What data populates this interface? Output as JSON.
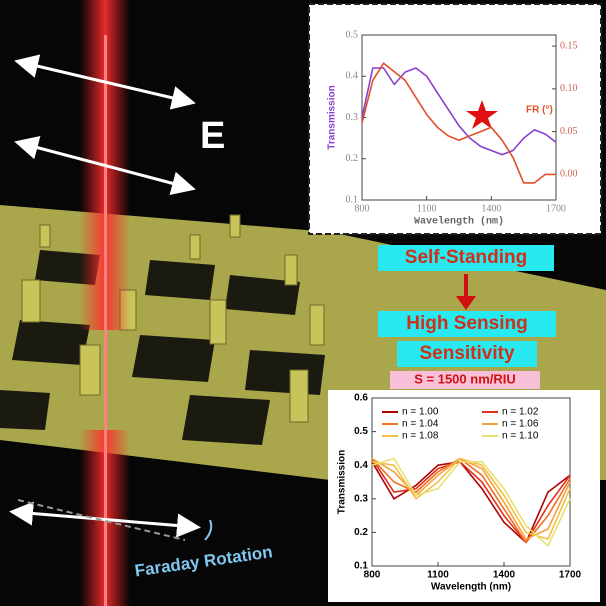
{
  "labels": {
    "field": "E",
    "step1": "Self-Standing",
    "step2_line1": "High Sensing",
    "step2_line2": "Sensitivity",
    "sensitivity": "S = 1500 nm/RIU",
    "rotation": "Faraday Rotation"
  },
  "chart_data": [
    {
      "type": "line",
      "x_label": "Wavelength (nm)",
      "y_label": "Transmission",
      "y2_label": "FR (°)",
      "x": [
        800,
        850,
        900,
        950,
        1000,
        1050,
        1100,
        1150,
        1200,
        1250,
        1300,
        1350,
        1400,
        1450,
        1500,
        1550,
        1600,
        1650,
        1700
      ],
      "xlim": [
        800,
        1700
      ],
      "xticks": [
        800,
        1100,
        1400,
        1700
      ],
      "ylim": [
        0.1,
        0.5
      ],
      "yticks": [
        0.1,
        0.2,
        0.3,
        0.4,
        0.5
      ],
      "y2lim": [
        -0.03,
        0.163
      ],
      "y2ticks": [
        {
          "value": 0,
          "label": "0.00"
        },
        {
          "value": 0.05,
          "label": "0.05"
        },
        {
          "value": 0.1,
          "label": "0.10"
        },
        {
          "value": 0.15,
          "label": "0.15"
        }
      ],
      "series": [
        {
          "color": "#8a3fd0",
          "values": [
            0.3,
            0.42,
            0.42,
            0.38,
            0.41,
            0.42,
            0.4,
            0.36,
            0.32,
            0.28,
            0.25,
            0.23,
            0.22,
            0.21,
            0.22,
            0.25,
            0.27,
            0.26,
            0.24
          ]
        },
        {
          "color": "#e0502a",
          "axis": "y2",
          "values": [
            0.06,
            0.11,
            0.13,
            0.12,
            0.11,
            0.09,
            0.07,
            0.055,
            0.045,
            0.04,
            0.045,
            0.05,
            0.055,
            0.04,
            0.02,
            -0.01,
            -0.01,
            0.0,
            0.0
          ]
        }
      ]
    },
    {
      "type": "line",
      "x_label": "Wavelength (nm)",
      "y_label": "Transmission",
      "x": [
        800,
        900,
        1000,
        1100,
        1200,
        1300,
        1400,
        1500,
        1600,
        1700
      ],
      "xlim": [
        800,
        1700
      ],
      "xticks": [
        800,
        1100,
        1400,
        1700
      ],
      "ylim": [
        0.1,
        0.6
      ],
      "yticks": [
        0.1,
        0.2,
        0.3,
        0.4,
        0.5,
        0.6
      ],
      "series": [
        {
          "name": "n = 1.00",
          "color": "#b00000",
          "values": [
            0.41,
            0.3,
            0.34,
            0.4,
            0.41,
            0.33,
            0.23,
            0.17,
            0.32,
            0.37
          ]
        },
        {
          "name": "n = 1.02",
          "color": "#e03020",
          "values": [
            0.42,
            0.32,
            0.33,
            0.39,
            0.41,
            0.35,
            0.25,
            0.17,
            0.28,
            0.37
          ]
        },
        {
          "name": "n = 1.04",
          "color": "#f07020",
          "values": [
            0.42,
            0.35,
            0.32,
            0.38,
            0.42,
            0.37,
            0.27,
            0.17,
            0.25,
            0.36
          ]
        },
        {
          "name": "n = 1.06",
          "color": "#f5a040",
          "values": [
            0.42,
            0.38,
            0.31,
            0.37,
            0.42,
            0.39,
            0.29,
            0.18,
            0.21,
            0.35
          ]
        },
        {
          "name": "n = 1.08",
          "color": "#f0c040",
          "values": [
            0.41,
            0.4,
            0.3,
            0.35,
            0.42,
            0.4,
            0.31,
            0.2,
            0.18,
            0.33
          ]
        },
        {
          "name": "n = 1.10",
          "color": "#e8e070",
          "values": [
            0.4,
            0.42,
            0.31,
            0.33,
            0.41,
            0.41,
            0.33,
            0.22,
            0.16,
            0.3
          ]
        }
      ]
    }
  ]
}
